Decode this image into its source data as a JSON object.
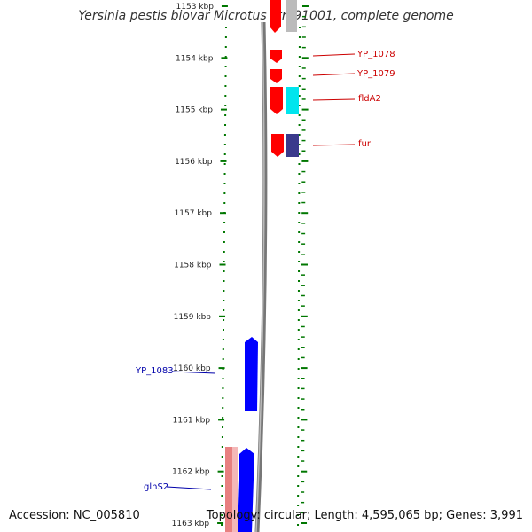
{
  "title": "Yersinia pestis biovar Microtus str. 91001, complete genome",
  "footer": {
    "accession": "Accession: NC_005810",
    "summary": "Topology: circular; Length: 4,595,065 bp; Genes: 3,991"
  },
  "colors": {
    "forward_gene": "#ff0000",
    "reverse_gene": "#0000ff",
    "label_forward": "#cc0000",
    "label_reverse": "#0000aa",
    "tick": "#007700",
    "cyan_feature": "#00e5ee",
    "navy_feature": "#3a3a8c",
    "pink_feature": "#e88080",
    "backbone": "#888888"
  },
  "ruler": {
    "unit": "kbp",
    "ticks": [
      {
        "pos": 1153,
        "label": "1153 kbp"
      },
      {
        "pos": 1154,
        "label": "1154 kbp"
      },
      {
        "pos": 1155,
        "label": "1155 kbp"
      },
      {
        "pos": 1156,
        "label": "1156 kbp"
      },
      {
        "pos": 1157,
        "label": "1157 kbp"
      },
      {
        "pos": 1158,
        "label": "1158 kbp"
      },
      {
        "pos": 1159,
        "label": "1159 kbp"
      },
      {
        "pos": 1160,
        "label": "1160 kbp"
      },
      {
        "pos": 1161,
        "label": "1161 kbp"
      },
      {
        "pos": 1162,
        "label": "1162 kbp"
      },
      {
        "pos": 1163,
        "label": "1163 kbp"
      }
    ]
  },
  "genes": [
    {
      "name": "YP_1078",
      "strand": "forward"
    },
    {
      "name": "YP_1079",
      "strand": "forward"
    },
    {
      "name": "fldA2",
      "strand": "forward"
    },
    {
      "name": "fur",
      "strand": "forward"
    },
    {
      "name": "YP_1083",
      "strand": "reverse"
    },
    {
      "name": "glnS2",
      "strand": "reverse"
    }
  ]
}
